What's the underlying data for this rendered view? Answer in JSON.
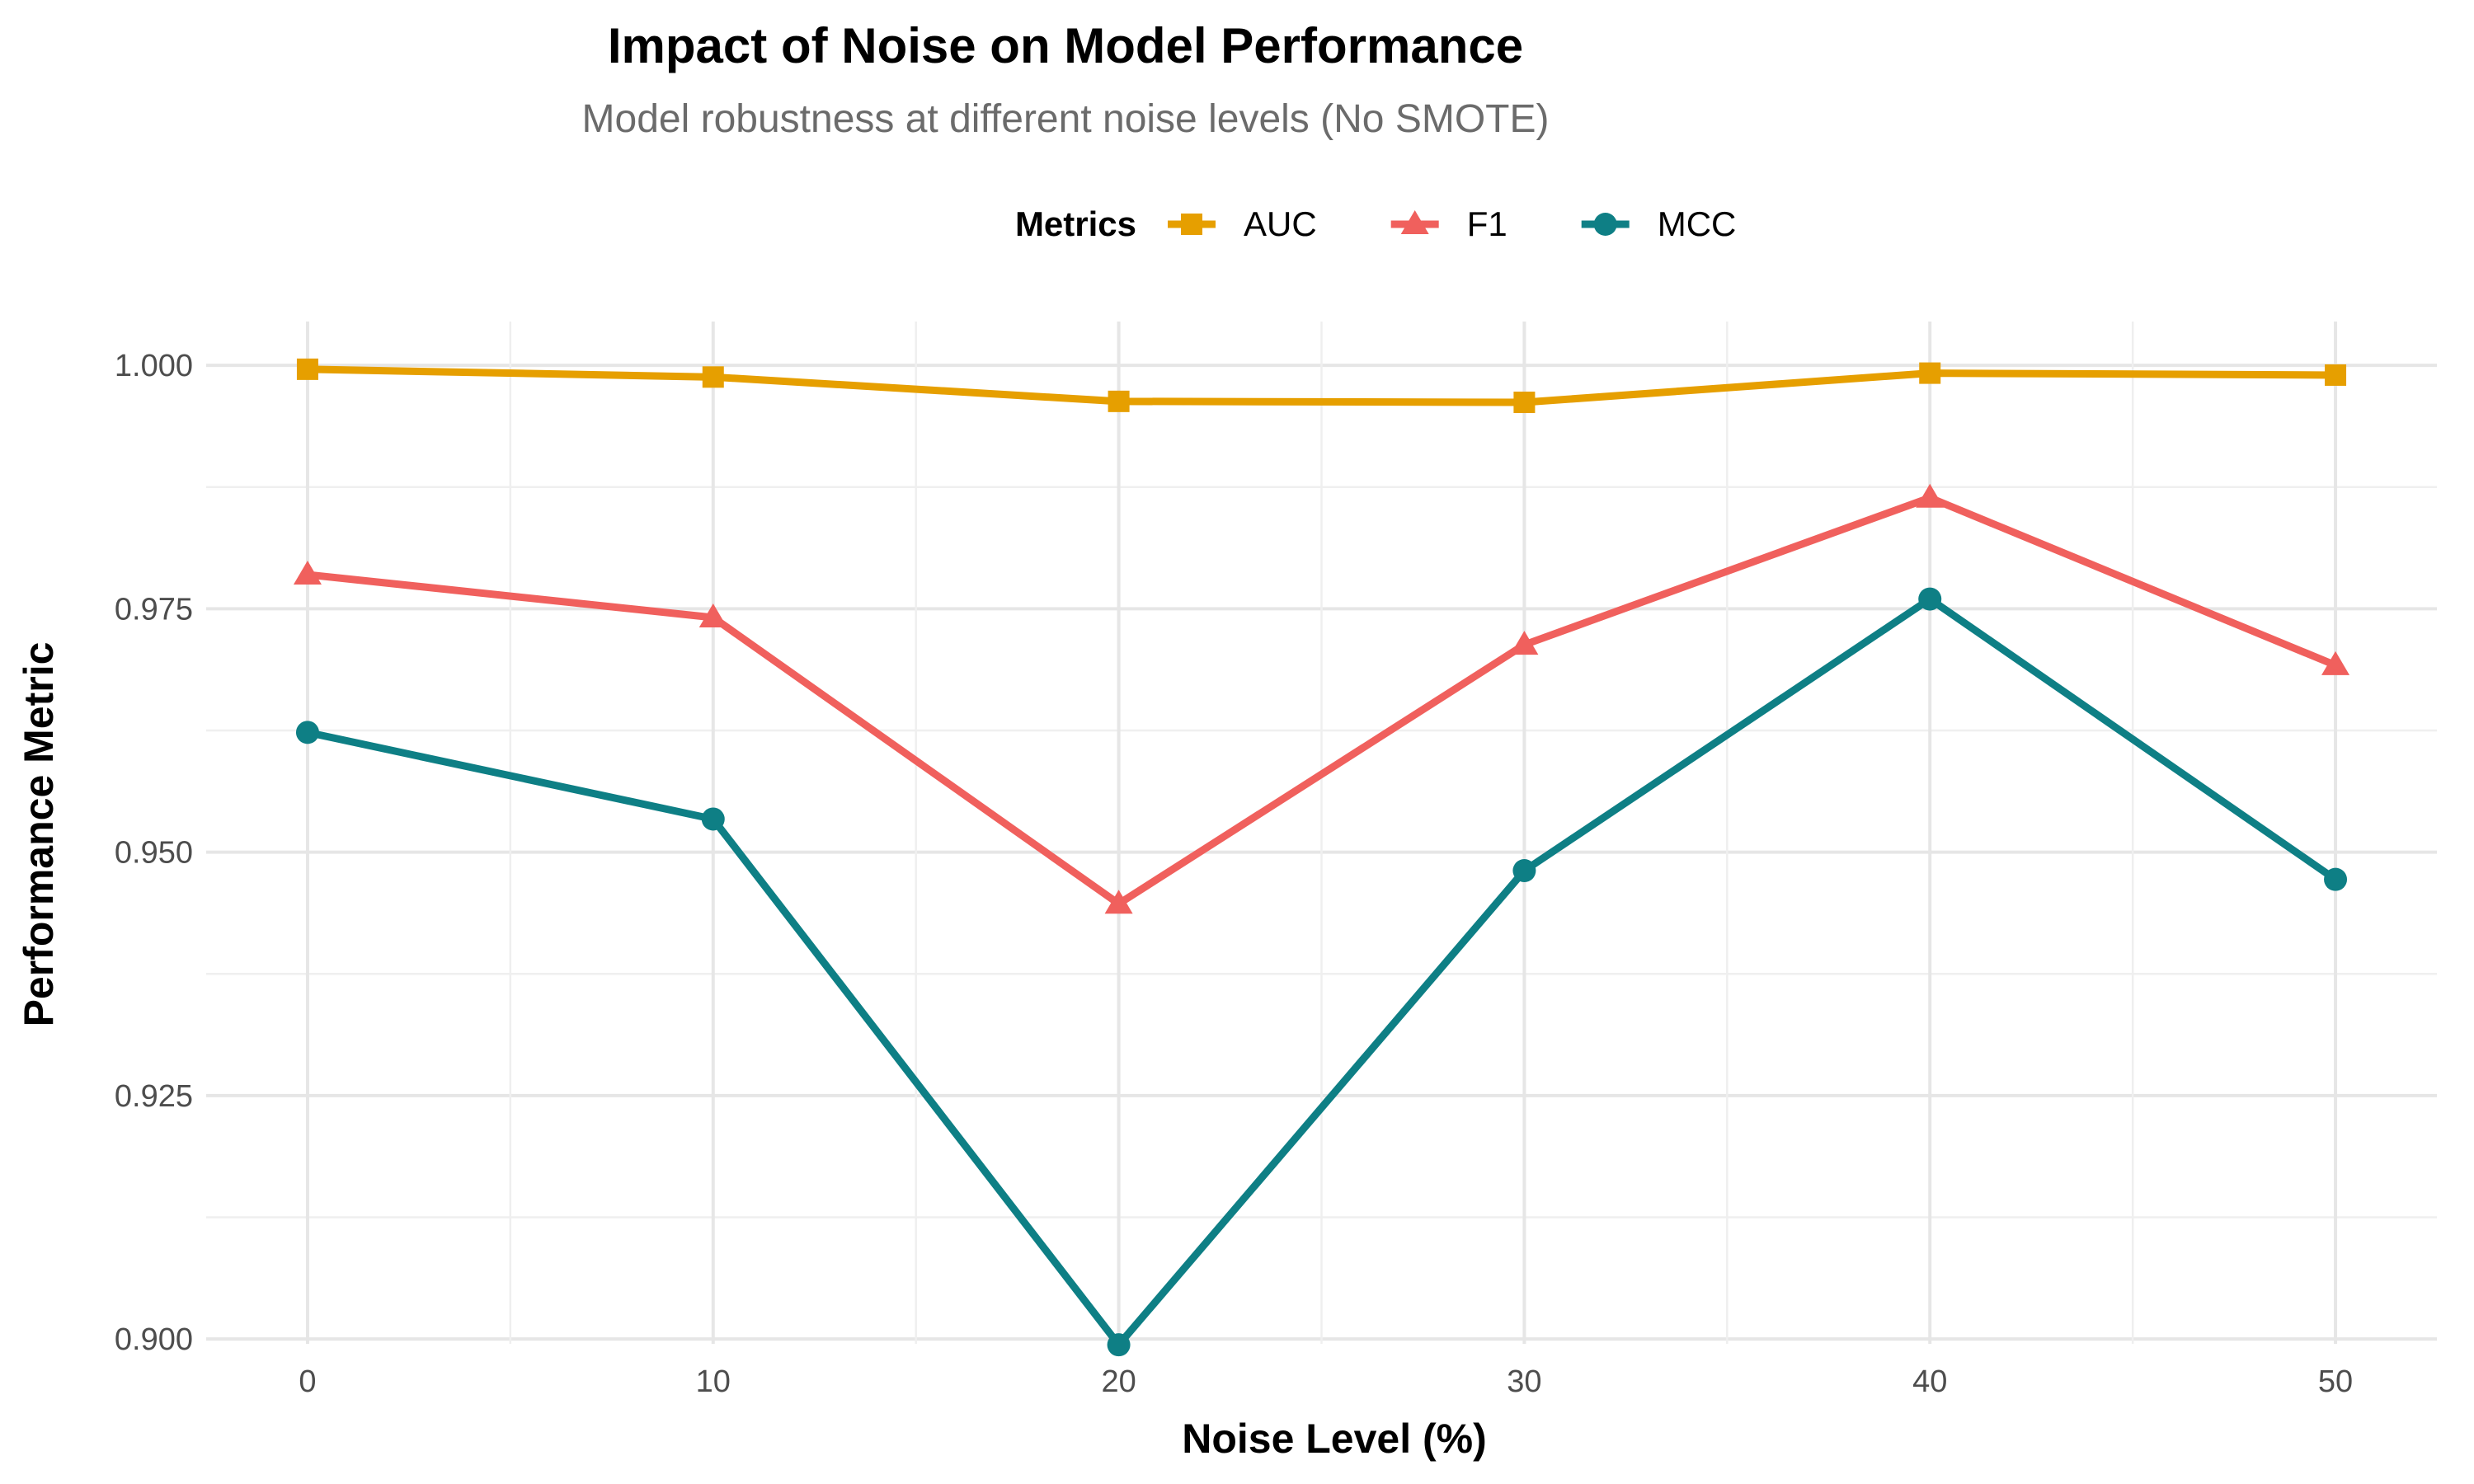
{
  "chart_data": {
    "type": "line",
    "title": "Impact of Noise on Model Performance",
    "subtitle": "Model robustness at different noise levels (No SMOTE)",
    "xlabel": "Noise Level (%)",
    "ylabel": "Performance Metric",
    "x": [
      0,
      10,
      20,
      30,
      40,
      50
    ],
    "x_ticks": [
      "0",
      "10",
      "20",
      "30",
      "40",
      "50"
    ],
    "y_ticks": [
      "0.900",
      "0.925",
      "0.950",
      "0.975",
      "1.000"
    ],
    "xlim": [
      -2.5,
      52.5
    ],
    "ylim": [
      0.8995,
      1.0045
    ],
    "grid": true,
    "legend": {
      "title": "Metrics",
      "position": "top"
    },
    "series": [
      {
        "name": "AUC",
        "color": "#E69F00",
        "marker": "square",
        "values": [
          0.9996,
          0.9988,
          0.9963,
          0.9962,
          0.9992,
          0.999
        ]
      },
      {
        "name": "F1",
        "color": "#F0605D",
        "marker": "triangle",
        "values": [
          0.9785,
          0.9741,
          0.9447,
          0.9713,
          0.9864,
          0.9692
        ]
      },
      {
        "name": "MCC",
        "color": "#0E7F85",
        "marker": "circle",
        "values": [
          0.9623,
          0.9534,
          0.8994,
          0.9481,
          0.976,
          0.9472
        ]
      }
    ]
  }
}
